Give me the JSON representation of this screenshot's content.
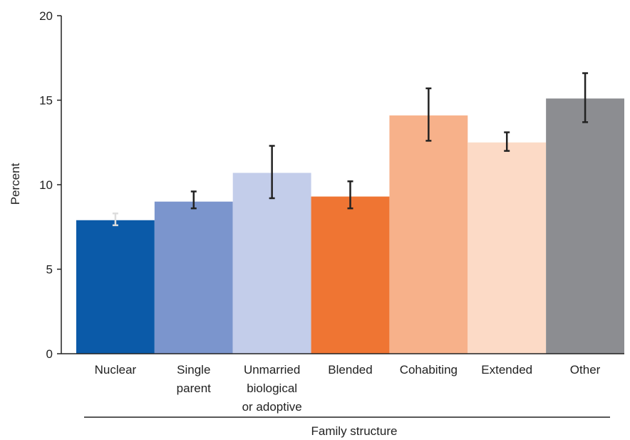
{
  "chart_data": {
    "type": "bar",
    "title": "",
    "xlabel": "Family structure",
    "ylabel": "Percent",
    "ylim": [
      0,
      20
    ],
    "yticks": [
      0,
      5,
      10,
      15,
      20
    ],
    "grid": false,
    "categories": [
      [
        "Nuclear"
      ],
      [
        "Single",
        "parent"
      ],
      [
        "Unmarried",
        "biological",
        "or adoptive"
      ],
      [
        "Blended"
      ],
      [
        "Cohabiting"
      ],
      [
        "Extended"
      ],
      [
        "Other"
      ]
    ],
    "values": [
      7.9,
      9.0,
      10.7,
      9.3,
      14.1,
      12.5,
      15.1
    ],
    "error_low": [
      7.6,
      8.6,
      9.2,
      8.6,
      12.6,
      12.0,
      13.7
    ],
    "error_high": [
      8.3,
      9.6,
      12.3,
      10.2,
      15.7,
      13.1,
      16.6
    ],
    "colors": [
      "#0b5aa8",
      "#7b95cd",
      "#c3cdea",
      "#ef7533",
      "#f7b18a",
      "#fcdac6",
      "#8c8d91"
    ],
    "error_colors": [
      "#dddddd",
      "#222222",
      "#222222",
      "#222222",
      "#222222",
      "#222222",
      "#222222"
    ]
  }
}
